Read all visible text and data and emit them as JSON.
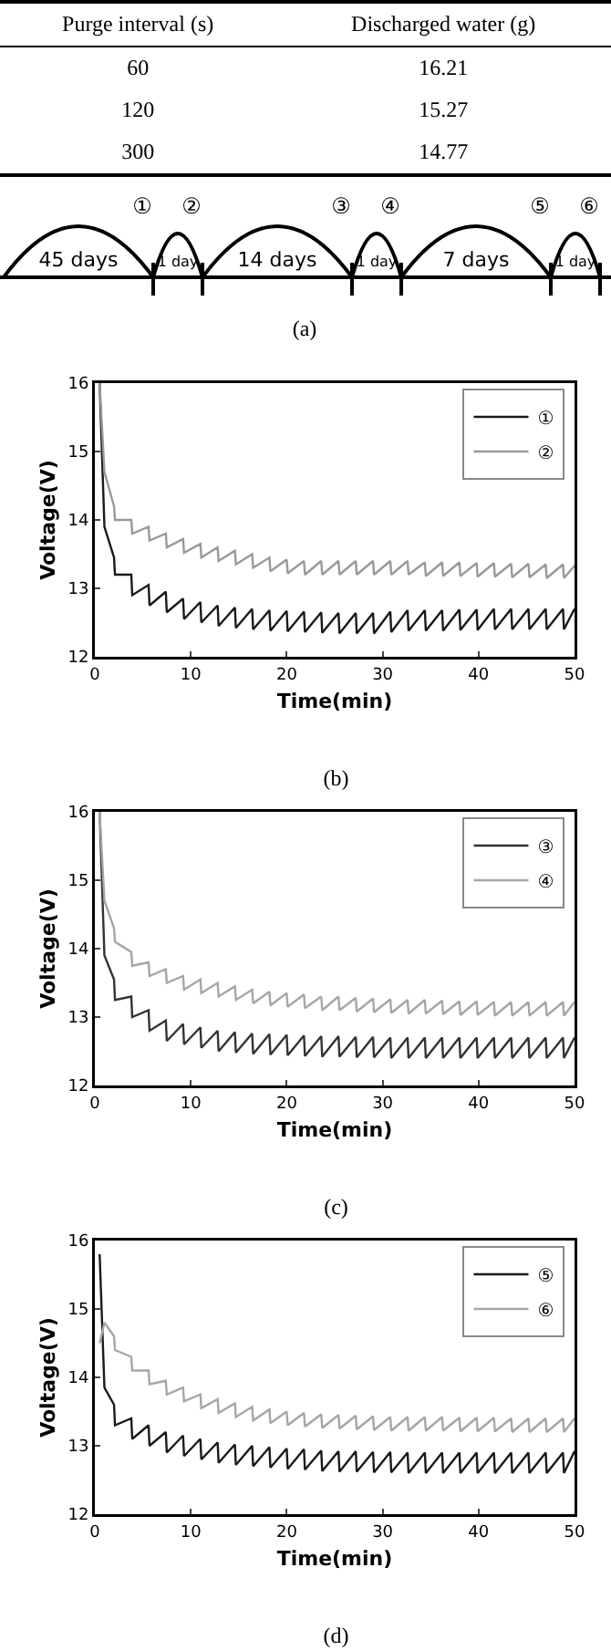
{
  "chart_data": [
    {
      "type": "other",
      "xlabel": "Purge interval (s)",
      "ylabel": "Discharged water (g)",
      "categories": [
        "60",
        "120",
        "300"
      ],
      "values": [
        16.21,
        15.27,
        14.77
      ],
      "data_labels": true
    },
    {
      "type": "other",
      "title": "(a)",
      "categories": [
        "45 days",
        "1 day",
        "14 days",
        "1 day",
        "7 days",
        "1 day"
      ],
      "annotations": [
        "①",
        "②",
        "③",
        "④",
        "⑤",
        "⑥"
      ]
    },
    {
      "type": "line",
      "title": "(b)",
      "xlabel": "Time(min)",
      "ylabel": "Voltage(V)",
      "xlim": [
        0,
        50
      ],
      "xticks": [
        0,
        10,
        20,
        30,
        40,
        50
      ],
      "ylim": [
        12,
        16
      ],
      "yticks": [
        12,
        13,
        14,
        15,
        16
      ],
      "legend": "top right",
      "x": [
        0.5,
        1,
        2,
        2.1,
        3.8,
        3.9,
        5.6,
        5.7,
        7.4,
        7.5,
        9.2,
        9.3,
        11,
        11.1,
        12.8,
        12.9,
        14.6,
        14.7,
        16.4,
        16.5,
        18.2,
        18.3,
        20,
        20.1,
        21.8,
        21.9,
        23.6,
        23.7,
        25.4,
        25.5,
        27.2,
        27.3,
        29,
        29.1,
        30.8,
        30.9,
        32.6,
        32.7,
        34.4,
        34.5,
        36.2,
        36.3,
        38,
        38.1,
        39.8,
        39.9,
        41.6,
        41.7,
        43.4,
        43.5,
        45.2,
        45.3,
        47,
        47.1,
        48.8,
        48.9,
        50
      ],
      "series": [
        {
          "name": "①",
          "color": "#1a1a1a",
          "values": [
            16,
            13.9,
            13.45,
            13.2,
            13.2,
            12.9,
            13.05,
            12.75,
            12.95,
            12.65,
            12.85,
            12.55,
            12.8,
            12.5,
            12.75,
            12.45,
            12.72,
            12.42,
            12.7,
            12.4,
            12.68,
            12.38,
            12.67,
            12.37,
            12.66,
            12.36,
            12.65,
            12.35,
            12.64,
            12.34,
            12.64,
            12.34,
            12.64,
            12.34,
            12.66,
            12.36,
            12.68,
            12.38,
            12.68,
            12.38,
            12.68,
            12.38,
            12.69,
            12.39,
            12.69,
            12.39,
            12.7,
            12.4,
            12.7,
            12.4,
            12.7,
            12.4,
            12.7,
            12.4,
            12.7,
            12.4,
            12.7
          ]
        },
        {
          "name": "②",
          "color": "#999999",
          "values": [
            16,
            14.7,
            14.2,
            14.0,
            14.0,
            13.8,
            13.9,
            13.7,
            13.8,
            13.6,
            13.72,
            13.52,
            13.65,
            13.45,
            13.6,
            13.4,
            13.55,
            13.35,
            13.5,
            13.3,
            13.45,
            13.25,
            13.42,
            13.22,
            13.4,
            13.2,
            13.4,
            13.2,
            13.4,
            13.2,
            13.4,
            13.2,
            13.4,
            13.2,
            13.4,
            13.2,
            13.4,
            13.2,
            13.38,
            13.18,
            13.38,
            13.18,
            13.38,
            13.18,
            13.37,
            13.17,
            13.37,
            13.17,
            13.36,
            13.16,
            13.36,
            13.16,
            13.35,
            13.15,
            13.35,
            13.15,
            13.33
          ]
        }
      ]
    },
    {
      "type": "line",
      "title": "(c)",
      "xlabel": "Time(min)",
      "ylabel": "Voltage(V)",
      "xlim": [
        0,
        50
      ],
      "xticks": [
        0,
        10,
        20,
        30,
        40,
        50
      ],
      "ylim": [
        12,
        16
      ],
      "yticks": [
        12,
        13,
        14,
        15,
        16
      ],
      "legend": "top right",
      "x": [
        0.5,
        1,
        2,
        2.1,
        3.8,
        3.9,
        5.6,
        5.7,
        7.4,
        7.5,
        9.2,
        9.3,
        11,
        11.1,
        12.8,
        12.9,
        14.6,
        14.7,
        16.4,
        16.5,
        18.2,
        18.3,
        20,
        20.1,
        21.8,
        21.9,
        23.6,
        23.7,
        25.4,
        25.5,
        27.2,
        27.3,
        29,
        29.1,
        30.8,
        30.9,
        32.6,
        32.7,
        34.4,
        34.5,
        36.2,
        36.3,
        38,
        38.1,
        39.8,
        39.9,
        41.6,
        41.7,
        43.4,
        43.5,
        45.2,
        45.3,
        47,
        47.1,
        48.8,
        48.9,
        50
      ],
      "series": [
        {
          "name": "③",
          "color": "#333333",
          "values": [
            16,
            13.9,
            13.55,
            13.25,
            13.3,
            13.0,
            13.1,
            12.8,
            12.95,
            12.65,
            12.9,
            12.6,
            12.85,
            12.55,
            12.8,
            12.5,
            12.78,
            12.48,
            12.76,
            12.46,
            12.75,
            12.45,
            12.74,
            12.44,
            12.73,
            12.43,
            12.72,
            12.42,
            12.72,
            12.42,
            12.71,
            12.41,
            12.71,
            12.41,
            12.7,
            12.4,
            12.7,
            12.4,
            12.7,
            12.4,
            12.7,
            12.4,
            12.7,
            12.4,
            12.7,
            12.4,
            12.7,
            12.4,
            12.7,
            12.4,
            12.7,
            12.4,
            12.7,
            12.4,
            12.7,
            12.4,
            12.7
          ]
        },
        {
          "name": "④",
          "color": "#a6a6a6",
          "values": [
            16,
            14.7,
            14.3,
            14.1,
            13.95,
            13.75,
            13.8,
            13.6,
            13.7,
            13.5,
            13.6,
            13.4,
            13.55,
            13.35,
            13.5,
            13.3,
            13.45,
            13.25,
            13.4,
            13.2,
            13.37,
            13.17,
            13.35,
            13.15,
            13.33,
            13.13,
            13.3,
            13.1,
            13.3,
            13.1,
            13.28,
            13.08,
            13.27,
            13.07,
            13.26,
            13.06,
            13.25,
            13.05,
            13.25,
            13.05,
            13.24,
            13.04,
            13.23,
            13.03,
            13.23,
            13.03,
            13.22,
            13.02,
            13.22,
            13.02,
            13.22,
            13.02,
            13.22,
            13.02,
            13.22,
            13.02,
            13.22
          ]
        }
      ]
    },
    {
      "type": "line",
      "title": "(d)",
      "xlabel": "Time(min)",
      "ylabel": "Voltage(V)",
      "xlim": [
        0,
        50
      ],
      "xticks": [
        0,
        10,
        20,
        30,
        40,
        50
      ],
      "ylim": [
        12,
        16
      ],
      "yticks": [
        12,
        13,
        14,
        15,
        16
      ],
      "legend": "top right",
      "x": [
        0.5,
        1,
        2,
        2.1,
        3.8,
        3.9,
        5.6,
        5.7,
        7.4,
        7.5,
        9.2,
        9.3,
        11,
        11.1,
        12.8,
        12.9,
        14.6,
        14.7,
        16.4,
        16.5,
        18.2,
        18.3,
        20,
        20.1,
        21.8,
        21.9,
        23.6,
        23.7,
        25.4,
        25.5,
        27.2,
        27.3,
        29,
        29.1,
        30.8,
        30.9,
        32.6,
        32.7,
        34.4,
        34.5,
        36.2,
        36.3,
        38,
        38.1,
        39.8,
        39.9,
        41.6,
        41.7,
        43.4,
        43.5,
        45.2,
        45.3,
        47,
        47.1,
        48.8,
        48.9,
        50
      ],
      "series": [
        {
          "name": "⑤",
          "color": "#1a1a1a",
          "values": [
            15.8,
            13.85,
            13.6,
            13.3,
            13.4,
            13.1,
            13.3,
            13.0,
            13.2,
            12.9,
            13.15,
            12.85,
            13.1,
            12.8,
            13.05,
            12.75,
            13.02,
            12.72,
            13.0,
            12.7,
            12.98,
            12.68,
            12.96,
            12.66,
            12.95,
            12.65,
            12.93,
            12.63,
            12.92,
            12.62,
            12.92,
            12.62,
            12.91,
            12.61,
            12.91,
            12.61,
            12.9,
            12.6,
            12.9,
            12.6,
            12.9,
            12.6,
            12.9,
            12.6,
            12.9,
            12.6,
            12.9,
            12.6,
            12.9,
            12.6,
            12.9,
            12.6,
            12.9,
            12.6,
            12.9,
            12.6,
            12.92
          ]
        },
        {
          "name": "⑥",
          "color": "#a6a6a6",
          "values": [
            14.5,
            14.8,
            14.6,
            14.4,
            14.3,
            14.1,
            14.1,
            13.9,
            13.95,
            13.75,
            13.85,
            13.65,
            13.75,
            13.55,
            13.68,
            13.48,
            13.62,
            13.42,
            13.57,
            13.37,
            13.53,
            13.33,
            13.5,
            13.3,
            13.48,
            13.28,
            13.46,
            13.26,
            13.45,
            13.25,
            13.44,
            13.24,
            13.43,
            13.23,
            13.42,
            13.22,
            13.42,
            13.22,
            13.42,
            13.22,
            13.42,
            13.22,
            13.41,
            13.21,
            13.41,
            13.21,
            13.41,
            13.21,
            13.4,
            13.2,
            13.4,
            13.2,
            13.4,
            13.2,
            13.4,
            13.2,
            13.4
          ]
        }
      ]
    }
  ]
}
